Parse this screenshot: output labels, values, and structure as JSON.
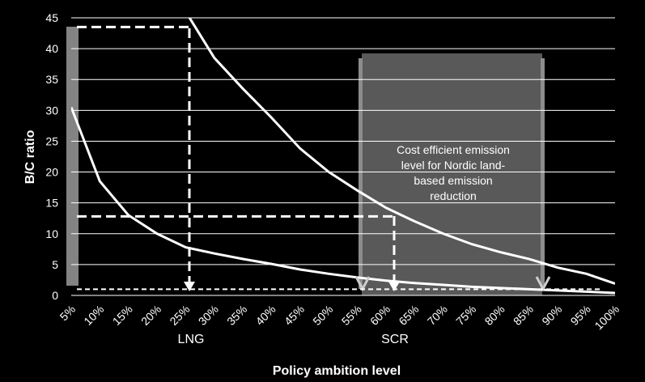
{
  "chart_data": {
    "type": "line",
    "y_label": "B/C ratio",
    "x_label": "Policy ambition level",
    "categories": [
      "5%",
      "10%",
      "15%",
      "20%",
      "25%",
      "30%",
      "35%",
      "40%",
      "45%",
      "50%",
      "55%",
      "60%",
      "65%",
      "70%",
      "75%",
      "80%",
      "85%",
      "90%",
      "95%",
      "100%"
    ],
    "series": [
      {
        "color": "#ffffff",
        "values": [
          30.5,
          18.5,
          13,
          10,
          7.8,
          6.8,
          5.9,
          5.1,
          4.2,
          3.5,
          2.9,
          2.4,
          2.0,
          1.7,
          1.4,
          1.2,
          1.0,
          0.8,
          0.6,
          0.4
        ]
      },
      {
        "color": "#ffffff",
        "values": [
          null,
          null,
          null,
          null,
          46,
          38.5,
          33.5,
          28.8,
          23.8,
          20,
          17,
          14.2,
          12,
          10,
          8.3,
          7,
          5.9,
          4.5,
          3.5,
          1.9
        ]
      }
    ],
    "reference_levels": [
      43.5,
      12.8,
      1
    ],
    "ylim": [
      0,
      45
    ],
    "yticks": [
      0,
      5,
      10,
      15,
      20,
      25,
      30,
      35,
      40,
      45
    ],
    "grid": true,
    "markers": [
      "LNG",
      "SCR"
    ],
    "box_text": [
      "Cost efficient emission",
      "level  for Nordic land-",
      "based emission",
      "reduction"
    ]
  }
}
